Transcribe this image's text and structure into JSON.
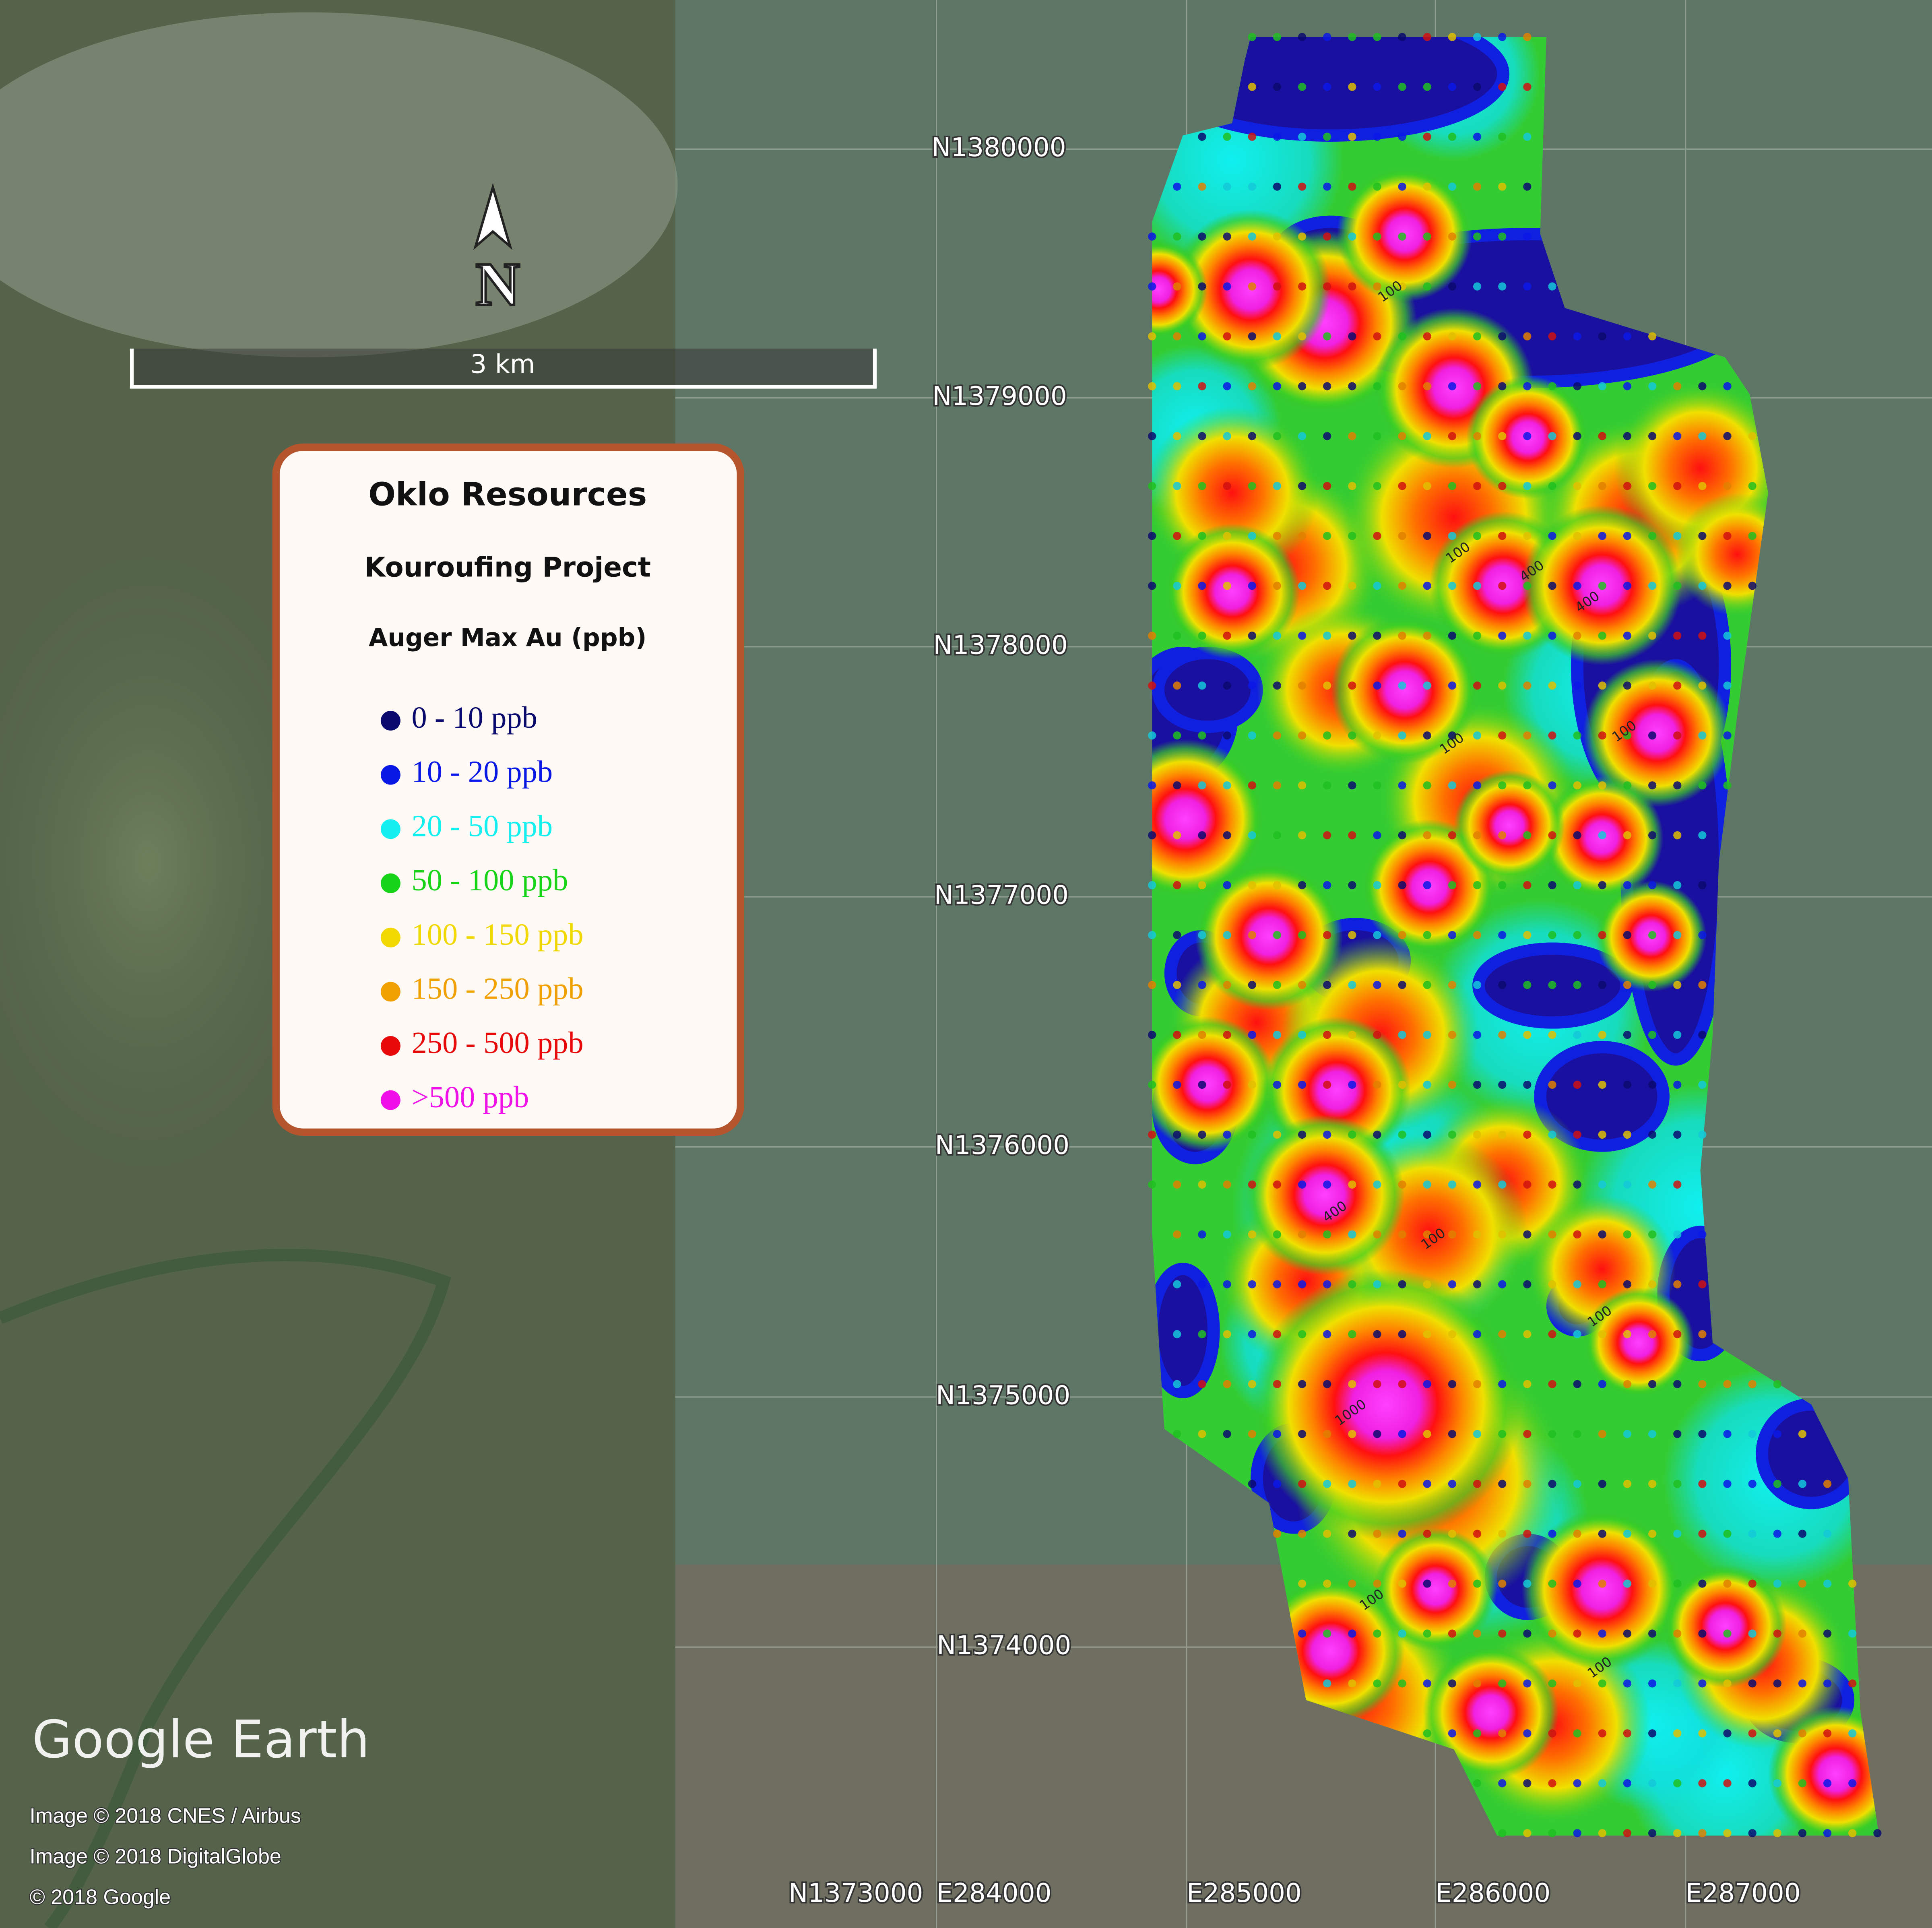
{
  "map": {
    "north_label": "N",
    "scale_bar": "3 km",
    "legend": {
      "title": "Oklo Resources",
      "subtitle": "Kouroufing Project",
      "heading": "Auger Max Au (ppb)",
      "items": [
        {
          "label": "0 - 10 ppb",
          "color": "#0a0a6e"
        },
        {
          "label": "10 - 20 ppb",
          "color": "#0a18e6"
        },
        {
          "label": "20 - 50 ppb",
          "color": "#14f0f0"
        },
        {
          "label": "50 - 100 ppb",
          "color": "#18d418"
        },
        {
          "label": "100 - 150 ppb",
          "color": "#f0d800"
        },
        {
          "label": "150 - 250 ppb",
          "color": "#f0a000"
        },
        {
          "label": "250 - 500 ppb",
          "color": "#e80a0a"
        },
        {
          "label": ">500 ppb",
          "color": "#f010e8"
        }
      ]
    },
    "northings": [
      "N1380000",
      "N1379000",
      "N1378000",
      "N1377000",
      "N1376000",
      "N1375000",
      "N1374000",
      "N1373000"
    ],
    "eastings": [
      "E284000",
      "E285000",
      "E286000",
      "E287000"
    ],
    "contour_labels": [
      "100",
      "100",
      "400",
      "400",
      "100",
      "100",
      "400",
      "100",
      "1000",
      "100",
      "100",
      "100"
    ],
    "logo": "Google Earth",
    "attribution": [
      "Image © 2018 CNES / Airbus",
      "Image © 2018 DigitalGlobe",
      "© 2018 Google"
    ]
  }
}
